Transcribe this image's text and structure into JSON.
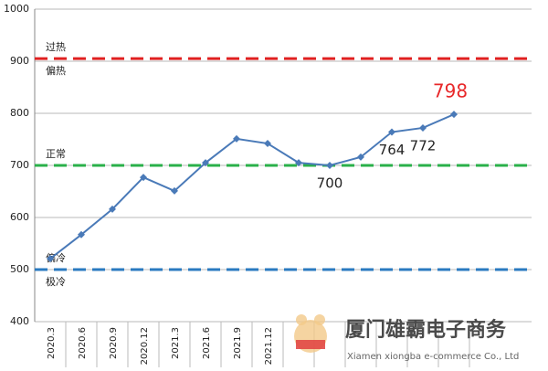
{
  "chart_data": {
    "type": "line",
    "categories": [
      "2020.3",
      "2020.6",
      "2020.9",
      "2020.12",
      "2021.3",
      "2021.6",
      "2021.9",
      "2021.12",
      null,
      null,
      null,
      null,
      null,
      null
    ],
    "series": [
      {
        "name": null,
        "color": "#4a7ab8",
        "values": [
          521,
          567,
          616,
          677,
          651,
          705,
          751,
          742,
          705,
          700,
          716,
          764,
          772,
          798
        ],
        "value_labels": [
          null,
          null,
          null,
          null,
          null,
          null,
          null,
          null,
          null,
          "700",
          null,
          "764",
          "772",
          "798"
        ]
      }
    ],
    "highlight_color": "#e8282a",
    "ylim": [
      400,
      1000
    ],
    "yticks": [
      400,
      500,
      600,
      700,
      800,
      900,
      1000
    ],
    "grid": true,
    "reference_lines": [
      {
        "value": 905,
        "color": "#e02020",
        "labels": [
          "过热",
          "偏热"
        ]
      },
      {
        "value": 700,
        "color": "#2ab04a",
        "labels": [
          "正常",
          null
        ]
      },
      {
        "value": 500,
        "color": "#2a7ac0",
        "labels": [
          "偏冷",
          "极冷"
        ]
      }
    ],
    "watermark": {
      "title": "厦门雄霸电子商务",
      "subtitle": "Xiamen xiongba e-commerce Co., Ltd"
    }
  }
}
